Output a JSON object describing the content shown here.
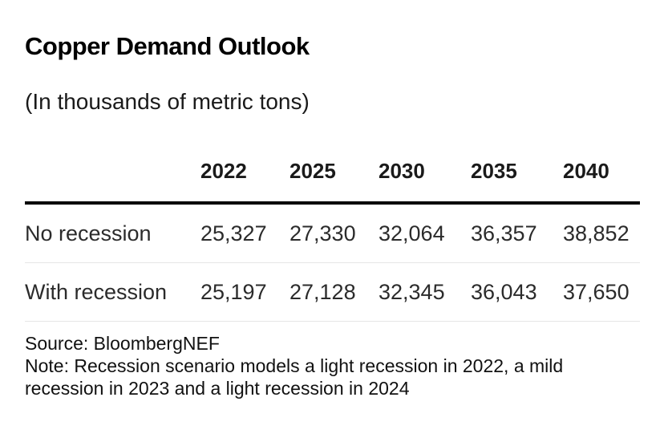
{
  "title": "Copper Demand Outlook",
  "subtitle": "(In thousands of metric tons)",
  "footer": {
    "source": "Source: BloombergNEF",
    "note": "Note: Recession scenario models a light recession in 2022, a mild recession in 2023 and a light recession in 2024"
  },
  "chart_data": {
    "type": "table",
    "title": "Copper Demand Outlook",
    "subtitle": "(In thousands of metric tons)",
    "columns": [
      "2022",
      "2025",
      "2030",
      "2035",
      "2040"
    ],
    "rows": [
      {
        "label": "No recession",
        "values": [
          "25,327",
          "27,330",
          "32,064",
          "36,357",
          "38,852"
        ]
      },
      {
        "label": "With recession",
        "values": [
          "25,197",
          "27,128",
          "32,345",
          "36,043",
          "37,650"
        ]
      }
    ]
  }
}
